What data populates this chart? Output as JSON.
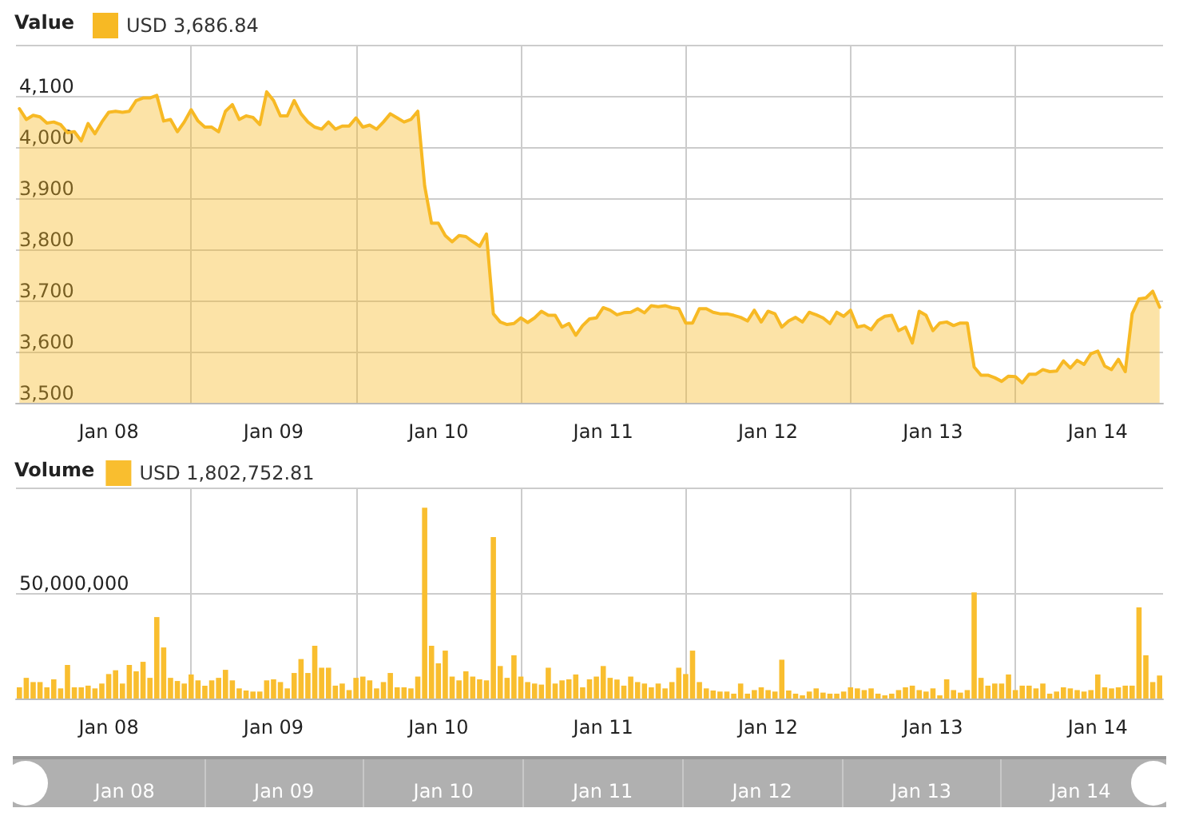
{
  "chart_data": [
    {
      "type": "area",
      "title": "Value",
      "legend": "top left",
      "grid": true,
      "marker": "none",
      "line_style": "solid",
      "xlim": [
        "--01-07T22:30",
        "--01-14T21:30"
      ],
      "xticks": [
        {
          "value": "--01-08T12:00",
          "label": "Jan 08"
        },
        {
          "value": "--01-09T12:00",
          "label": "Jan 09"
        },
        {
          "value": "--01-10T12:00",
          "label": "Jan 10"
        },
        {
          "value": "--01-11T12:00",
          "label": "Jan 11"
        },
        {
          "value": "--01-12T12:00",
          "label": "Jan 12"
        },
        {
          "value": "--01-13T12:00",
          "label": "Jan 13"
        },
        {
          "value": "--01-14T12:00",
          "label": "Jan 14"
        },
        {
          "value": "--01-09T00:00",
          "label": null
        },
        {
          "value": "--01-10T00:00",
          "label": null
        },
        {
          "value": "--01-11T00:00",
          "label": null
        },
        {
          "value": "--01-12T00:00",
          "label": null
        },
        {
          "value": "--01-13T00:00",
          "label": null
        },
        {
          "value": "--01-14T00:00",
          "label": null
        }
      ],
      "ylim": [
        3500,
        4200
      ],
      "yticks": [
        {
          "value": 3500,
          "label": "3,500"
        },
        {
          "value": 3600,
          "label": "3,600"
        },
        {
          "value": 3700,
          "label": "3,700"
        },
        {
          "value": 3800,
          "label": "3,800"
        },
        {
          "value": 3900,
          "label": "3,900"
        },
        {
          "value": 4000,
          "label": "4,000"
        },
        {
          "value": 4100,
          "label": "4,100"
        },
        {
          "value": 4200,
          "label": null
        }
      ],
      "x": [
        "--01-07T23:00",
        "--01-08T00:00",
        "--01-08T01:00",
        "--01-08T02:00",
        "--01-08T03:00",
        "--01-08T04:00",
        "--01-08T05:00",
        "--01-08T06:00",
        "--01-08T07:00",
        "--01-08T08:00",
        "--01-08T09:00",
        "--01-08T10:00",
        "--01-08T11:00",
        "--01-08T12:00",
        "--01-08T13:00",
        "--01-08T14:00",
        "--01-08T15:00",
        "--01-08T16:00",
        "--01-08T17:00",
        "--01-08T18:00",
        "--01-08T19:00",
        "--01-08T20:00",
        "--01-08T21:00",
        "--01-08T22:00",
        "--01-08T23:00",
        "--01-09T00:00",
        "--01-09T01:00",
        "--01-09T02:00",
        "--01-09T03:00",
        "--01-09T04:00",
        "--01-09T05:00",
        "--01-09T06:00",
        "--01-09T07:00",
        "--01-09T08:00",
        "--01-09T09:00",
        "--01-09T10:00",
        "--01-09T11:00",
        "--01-09T12:00",
        "--01-09T13:00",
        "--01-09T14:00",
        "--01-09T15:00",
        "--01-09T16:00",
        "--01-09T17:00",
        "--01-09T18:00",
        "--01-09T19:00",
        "--01-09T20:00",
        "--01-09T21:00",
        "--01-09T22:00",
        "--01-09T23:00",
        "--01-10T00:00",
        "--01-10T01:00",
        "--01-10T02:00",
        "--01-10T03:00",
        "--01-10T04:00",
        "--01-10T05:00",
        "--01-10T06:00",
        "--01-10T07:00",
        "--01-10T08:00",
        "--01-10T09:00",
        "--01-10T10:00",
        "--01-10T11:00",
        "--01-10T12:00",
        "--01-10T13:00",
        "--01-10T14:00",
        "--01-10T15:00",
        "--01-10T16:00",
        "--01-10T17:00",
        "--01-10T18:00",
        "--01-10T19:00",
        "--01-10T20:00",
        "--01-10T21:00",
        "--01-10T22:00",
        "--01-10T23:00",
        "--01-11T00:00",
        "--01-11T01:00",
        "--01-11T02:00",
        "--01-11T03:00",
        "--01-11T04:00",
        "--01-11T05:00",
        "--01-11T06:00",
        "--01-11T07:00",
        "--01-11T08:00",
        "--01-11T09:00",
        "--01-11T10:00",
        "--01-11T11:00",
        "--01-11T12:00",
        "--01-11T13:00",
        "--01-11T14:00",
        "--01-11T15:00",
        "--01-11T16:00",
        "--01-11T17:00",
        "--01-11T18:00",
        "--01-11T19:00",
        "--01-11T20:00",
        "--01-11T21:00",
        "--01-11T22:00",
        "--01-11T23:00",
        "--01-12T00:00",
        "--01-12T01:00",
        "--01-12T02:00",
        "--01-12T03:00",
        "--01-12T04:00",
        "--01-12T05:00",
        "--01-12T06:00",
        "--01-12T07:00",
        "--01-12T08:00",
        "--01-12T09:00",
        "--01-12T10:00",
        "--01-12T11:00",
        "--01-12T12:00",
        "--01-12T13:00",
        "--01-12T14:00",
        "--01-12T15:00",
        "--01-12T16:00",
        "--01-12T17:00",
        "--01-12T18:00",
        "--01-12T19:00",
        "--01-12T20:00",
        "--01-12T21:00",
        "--01-12T22:00",
        "--01-12T23:00",
        "--01-13T00:00",
        "--01-13T01:00",
        "--01-13T02:00",
        "--01-13T03:00",
        "--01-13T04:00",
        "--01-13T05:00",
        "--01-13T06:00",
        "--01-13T07:00",
        "--01-13T08:00",
        "--01-13T09:00",
        "--01-13T10:00",
        "--01-13T11:00",
        "--01-13T12:00",
        "--01-13T13:00",
        "--01-13T14:00",
        "--01-13T15:00",
        "--01-13T16:00",
        "--01-13T17:00",
        "--01-13T18:00",
        "--01-13T19:00",
        "--01-13T20:00",
        "--01-13T21:00",
        "--01-13T22:00",
        "--01-13T23:00",
        "--01-14T00:00",
        "--01-14T01:00",
        "--01-14T02:00",
        "--01-14T03:00",
        "--01-14T04:00",
        "--01-14T05:00",
        "--01-14T06:00",
        "--01-14T07:00",
        "--01-14T08:00",
        "--01-14T09:00",
        "--01-14T10:00",
        "--01-14T11:00",
        "--01-14T12:00",
        "--01-14T13:00",
        "--01-14T14:00",
        "--01-14T15:00",
        "--01-14T16:00",
        "--01-14T17:00",
        "--01-14T18:00",
        "--01-14T19:00",
        "--01-14T20:00",
        "--01-14T21:00"
      ],
      "series": [
        {
          "name": "USD 3,686.84",
          "color": "#f7b924",
          "values": [
            4075,
            4054,
            4062,
            4059,
            4047,
            4049,
            4044,
            4028,
            4030,
            4012,
            4046,
            4026,
            4049,
            4068,
            4070,
            4068,
            4070,
            4091,
            4096,
            4096,
            4101,
            4051,
            4054,
            4030,
            4049,
            4073,
            4051,
            4039,
            4039,
            4030,
            4070,
            4083,
            4054,
            4061,
            4058,
            4044,
            4108,
            4091,
            4061,
            4061,
            4091,
            4065,
            4049,
            4039,
            4035,
            4049,
            4035,
            4041,
            4041,
            4057,
            4039,
            4043,
            4035,
            4049,
            4065,
            4057,
            4049,
            4054,
            4070,
            3924,
            3851,
            3851,
            3827,
            3815,
            3827,
            3825,
            3815,
            3806,
            3830,
            3674,
            3658,
            3653,
            3655,
            3666,
            3657,
            3666,
            3679,
            3671,
            3671,
            3648,
            3655,
            3632,
            3651,
            3664,
            3666,
            3686,
            3681,
            3672,
            3676,
            3677,
            3684,
            3676,
            3690,
            3688,
            3690,
            3686,
            3684,
            3656,
            3656,
            3684,
            3684,
            3677,
            3674,
            3674,
            3671,
            3667,
            3660,
            3681,
            3658,
            3679,
            3674,
            3648,
            3660,
            3667,
            3658,
            3677,
            3672,
            3666,
            3655,
            3677,
            3669,
            3681,
            3648,
            3651,
            3643,
            3661,
            3669,
            3671,
            3641,
            3648,
            3617,
            3679,
            3671,
            3641,
            3656,
            3658,
            3651,
            3656,
            3656,
            3570,
            3554,
            3554,
            3549,
            3542,
            3552,
            3551,
            3539,
            3556,
            3556,
            3565,
            3561,
            3562,
            3582,
            3568,
            3583,
            3575,
            3596,
            3601,
            3572,
            3565,
            3585,
            3561,
            3674,
            3703,
            3705,
            3718,
            3687
          ]
        }
      ]
    },
    {
      "type": "bar",
      "title": "Volume",
      "legend": "top left",
      "grid": true,
      "xlim": [
        "--01-07T22:30",
        "--01-14T21:30"
      ],
      "xticks": [
        {
          "value": "--01-08T12:00",
          "label": "Jan 08"
        },
        {
          "value": "--01-09T12:00",
          "label": "Jan 09"
        },
        {
          "value": "--01-10T12:00",
          "label": "Jan 10"
        },
        {
          "value": "--01-11T12:00",
          "label": "Jan 11"
        },
        {
          "value": "--01-12T12:00",
          "label": "Jan 12"
        },
        {
          "value": "--01-13T12:00",
          "label": "Jan 13"
        },
        {
          "value": "--01-14T12:00",
          "label": "Jan 14"
        },
        {
          "value": "--01-09T00:00",
          "label": null
        },
        {
          "value": "--01-10T00:00",
          "label": null
        },
        {
          "value": "--01-11T00:00",
          "label": null
        },
        {
          "value": "--01-12T00:00",
          "label": null
        },
        {
          "value": "--01-13T00:00",
          "label": null
        },
        {
          "value": "--01-14T00:00",
          "label": null
        }
      ],
      "ylim": [
        0,
        100000000
      ],
      "yticks": [
        0,
        {
          "value": 50000000,
          "label": "50,000,000"
        },
        {
          "value": 100000000,
          "label": null
        }
      ],
      "x": [
        "--01-07T23:00",
        "--01-08T00:00",
        "--01-08T01:00",
        "--01-08T02:00",
        "--01-08T03:00",
        "--01-08T04:00",
        "--01-08T05:00",
        "--01-08T06:00",
        "--01-08T07:00",
        "--01-08T08:00",
        "--01-08T09:00",
        "--01-08T10:00",
        "--01-08T11:00",
        "--01-08T12:00",
        "--01-08T13:00",
        "--01-08T14:00",
        "--01-08T15:00",
        "--01-08T16:00",
        "--01-08T17:00",
        "--01-08T18:00",
        "--01-08T19:00",
        "--01-08T20:00",
        "--01-08T21:00",
        "--01-08T22:00",
        "--01-08T23:00",
        "--01-09T00:00",
        "--01-09T01:00",
        "--01-09T02:00",
        "--01-09T03:00",
        "--01-09T04:00",
        "--01-09T05:00",
        "--01-09T06:00",
        "--01-09T07:00",
        "--01-09T08:00",
        "--01-09T09:00",
        "--01-09T10:00",
        "--01-09T11:00",
        "--01-09T12:00",
        "--01-09T13:00",
        "--01-09T14:00",
        "--01-09T15:00",
        "--01-09T16:00",
        "--01-09T17:00",
        "--01-09T18:00",
        "--01-09T19:00",
        "--01-09T20:00",
        "--01-09T21:00",
        "--01-09T22:00",
        "--01-09T23:00",
        "--01-10T00:00",
        "--01-10T01:00",
        "--01-10T02:00",
        "--01-10T03:00",
        "--01-10T04:00",
        "--01-10T05:00",
        "--01-10T06:00",
        "--01-10T07:00",
        "--01-10T08:00",
        "--01-10T09:00",
        "--01-10T10:00",
        "--01-10T11:00",
        "--01-10T12:00",
        "--01-10T13:00",
        "--01-10T14:00",
        "--01-10T15:00",
        "--01-10T16:00",
        "--01-10T17:00",
        "--01-10T18:00",
        "--01-10T19:00",
        "--01-10T20:00",
        "--01-10T21:00",
        "--01-10T22:00",
        "--01-10T23:00",
        "--01-11T00:00",
        "--01-11T01:00",
        "--01-11T02:00",
        "--01-11T03:00",
        "--01-11T04:00",
        "--01-11T05:00",
        "--01-11T06:00",
        "--01-11T07:00",
        "--01-11T08:00",
        "--01-11T09:00",
        "--01-11T10:00",
        "--01-11T11:00",
        "--01-11T12:00",
        "--01-11T13:00",
        "--01-11T14:00",
        "--01-11T15:00",
        "--01-11T16:00",
        "--01-11T17:00",
        "--01-11T18:00",
        "--01-11T19:00",
        "--01-11T20:00",
        "--01-11T21:00",
        "--01-11T22:00",
        "--01-11T23:00",
        "--01-12T00:00",
        "--01-12T01:00",
        "--01-12T02:00",
        "--01-12T03:00",
        "--01-12T04:00",
        "--01-12T05:00",
        "--01-12T06:00",
        "--01-12T07:00",
        "--01-12T08:00",
        "--01-12T09:00",
        "--01-12T10:00",
        "--01-12T11:00",
        "--01-12T12:00",
        "--01-12T13:00",
        "--01-12T14:00",
        "--01-12T15:00",
        "--01-12T16:00",
        "--01-12T17:00",
        "--01-12T18:00",
        "--01-12T19:00",
        "--01-12T20:00",
        "--01-12T21:00",
        "--01-12T22:00",
        "--01-12T23:00",
        "--01-13T00:00",
        "--01-13T01:00",
        "--01-13T02:00",
        "--01-13T03:00",
        "--01-13T04:00",
        "--01-13T05:00",
        "--01-13T06:00",
        "--01-13T07:00",
        "--01-13T08:00",
        "--01-13T09:00",
        "--01-13T10:00",
        "--01-13T11:00",
        "--01-13T12:00",
        "--01-13T13:00",
        "--01-13T14:00",
        "--01-13T15:00",
        "--01-13T16:00",
        "--01-13T17:00",
        "--01-13T18:00",
        "--01-13T19:00",
        "--01-13T20:00",
        "--01-13T21:00",
        "--01-13T22:00",
        "--01-13T23:00",
        "--01-14T00:00",
        "--01-14T01:00",
        "--01-14T02:00",
        "--01-14T03:00",
        "--01-14T04:00",
        "--01-14T05:00",
        "--01-14T06:00",
        "--01-14T07:00",
        "--01-14T08:00",
        "--01-14T09:00",
        "--01-14T10:00",
        "--01-14T11:00",
        "--01-14T12:00",
        "--01-14T13:00",
        "--01-14T14:00",
        "--01-14T15:00",
        "--01-14T16:00",
        "--01-14T17:00",
        "--01-14T18:00",
        "--01-14T19:00",
        "--01-14T20:00",
        "--01-14T21:00"
      ],
      "series": [
        {
          "name": "USD 1,802,752.81",
          "color": "#f9be2f",
          "values": [
            5300000.0,
            9800000.0,
            7800000.0,
            7800000.0,
            5300000.0,
            9100000.0,
            4800000.0,
            15900000.0,
            5300000.0,
            5300000.0,
            6100000.0,
            4800000.0,
            7100000.0,
            11600000.0,
            13400000.0,
            7100000.0,
            15900000.0,
            12900000.0,
            17400000.0,
            9800000.0,
            38600000.0,
            24200000.0,
            9800000.0,
            8300000.0,
            7100000.0,
            11400000.0,
            8600000.0,
            6100000.0,
            8600000.0,
            9800000.0,
            13600000.0,
            8600000.0,
            4800000.0,
            3800000.0,
            3300000.0,
            3300000.0,
            8600000.0,
            9100000.0,
            7800000.0,
            4800000.0,
            12100000.0,
            18700000.0,
            12100000.0,
            25000000.0,
            14600000.0,
            14600000.0,
            6100000.0,
            7100000.0,
            4000000.0,
            9800000.0,
            10400000.0,
            8600000.0,
            4800000.0,
            7800000.0,
            12100000.0,
            5300000.0,
            5300000.0,
            4800000.0,
            10400000.0,
            90400000.0,
            25000000.0,
            16700000.0,
            22700000.0,
            10400000.0,
            8600000.0,
            12900000.0,
            10400000.0,
            9100000.0,
            8600000.0,
            76500000.0,
            15400000.0,
            9800000.0,
            20500000.0,
            10400000.0,
            7800000.0,
            7100000.0,
            6600000.0,
            14600000.0,
            7100000.0,
            8600000.0,
            9100000.0,
            11400000.0,
            5300000.0,
            9100000.0,
            10400000.0,
            15400000.0,
            9800000.0,
            9000000.0,
            6100000.0,
            10400000.0,
            7800000.0,
            7100000.0,
            5300000.0,
            7100000.0,
            4800000.0,
            7800000.0,
            14600000.0,
            11600000.0,
            22700000.0,
            7800000.0,
            4800000.0,
            3800000.0,
            3300000.0,
            3300000.0,
            2300000.0,
            7100000.0,
            2300000.0,
            4000000.0,
            5300000.0,
            4000000.0,
            3300000.0,
            18400000.0,
            3800000.0,
            2300000.0,
            1500000.0,
            3300000.0,
            4800000.0,
            2800000.0,
            2300000.0,
            2300000.0,
            3300000.0,
            5300000.0,
            4800000.0,
            4000000.0,
            4800000.0,
            2300000.0,
            1500000.0,
            2300000.0,
            4000000.0,
            5300000.0,
            6100000.0,
            4000000.0,
            3300000.0,
            4800000.0,
            1500000.0,
            9100000.0,
            4000000.0,
            2800000.0,
            4000000.0,
            50300000.0,
            9800000.0,
            6100000.0,
            7100000.0,
            7100000.0,
            11400000.0,
            4000000.0,
            6100000.0,
            6100000.0,
            4800000.0,
            7100000.0,
            2300000.0,
            3300000.0,
            5300000.0,
            4800000.0,
            4000000.0,
            3300000.0,
            4000000.0,
            11400000.0,
            5300000.0,
            4800000.0,
            5300000.0,
            6100000.0,
            6100000.0,
            43200000.0,
            20500000.0,
            7800000.0,
            10900000.0
          ]
        }
      ]
    }
  ]
}
